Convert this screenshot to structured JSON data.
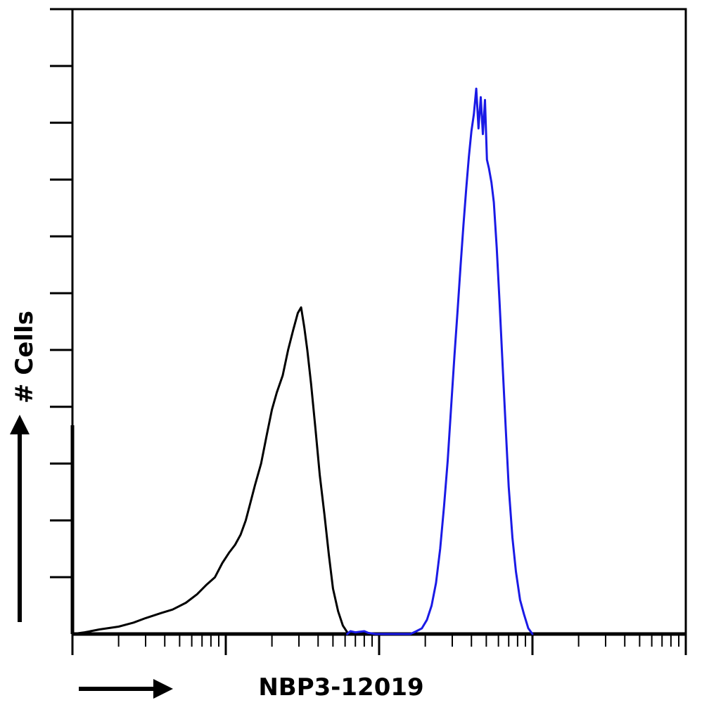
{
  "chart_data": {
    "type": "line",
    "title": "",
    "xlabel": "NBP3-12019",
    "ylabel": "# Cells",
    "x_scale": "log",
    "xlim": [
      1,
      10000
    ],
    "ylim": [
      0,
      110
    ],
    "grid": false,
    "legend": "none",
    "series": [
      {
        "color": "#000000",
        "points": [
          [
            1.0,
            0
          ],
          [
            1.2,
            0.3
          ],
          [
            1.5,
            0.8
          ],
          [
            2.0,
            1.3
          ],
          [
            2.5,
            2.0
          ],
          [
            3.0,
            2.8
          ],
          [
            3.8,
            3.7
          ],
          [
            4.5,
            4.3
          ],
          [
            5.5,
            5.5
          ],
          [
            6.5,
            7.0
          ],
          [
            7.5,
            8.7
          ],
          [
            8.5,
            10.0
          ],
          [
            9.5,
            12.5
          ],
          [
            10.5,
            14.3
          ],
          [
            11.5,
            15.7
          ],
          [
            12.5,
            17.5
          ],
          [
            13.5,
            20.0
          ],
          [
            14.5,
            23.2
          ],
          [
            15.5,
            26.2
          ],
          [
            17.0,
            30.0
          ],
          [
            18.5,
            35.0
          ],
          [
            20.0,
            39.5
          ],
          [
            21.5,
            42.5
          ],
          [
            23.5,
            45.5
          ],
          [
            25.5,
            50.0
          ],
          [
            27.5,
            53.5
          ],
          [
            29.5,
            56.5
          ],
          [
            31.0,
            57.5
          ],
          [
            32.5,
            54.0
          ],
          [
            34.0,
            50.0
          ],
          [
            36.0,
            44.0
          ],
          [
            38.5,
            36.0
          ],
          [
            41.0,
            28.0
          ],
          [
            44.0,
            21.0
          ],
          [
            47.0,
            14.0
          ],
          [
            50.0,
            8.0
          ],
          [
            54.0,
            4.0
          ],
          [
            58.0,
            1.5
          ],
          [
            62.0,
            0.3
          ],
          [
            68.0,
            0
          ]
        ]
      },
      {
        "color": "#1a1ae6",
        "points": [
          [
            62.0,
            0
          ],
          [
            65.0,
            0.5
          ],
          [
            70.0,
            0.3
          ],
          [
            75.0,
            0.4
          ],
          [
            80.0,
            0.5
          ],
          [
            85.0,
            0.2
          ],
          [
            95.0,
            0
          ],
          [
            160.0,
            0
          ],
          [
            175.0,
            0.5
          ],
          [
            190.0,
            1.0
          ],
          [
            205.0,
            2.5
          ],
          [
            220.0,
            5.0
          ],
          [
            235.0,
            9.0
          ],
          [
            250.0,
            15.0
          ],
          [
            265.0,
            22.5
          ],
          [
            280.0,
            30.5
          ],
          [
            295.0,
            40.0
          ],
          [
            310.0,
            49.0
          ],
          [
            325.0,
            57.0
          ],
          [
            340.0,
            65.0
          ],
          [
            355.0,
            72.0
          ],
          [
            370.0,
            78.5
          ],
          [
            385.0,
            84.0
          ],
          [
            400.0,
            88.5
          ],
          [
            415.0,
            91.5
          ],
          [
            430.0,
            96.0
          ],
          [
            445.0,
            89.0
          ],
          [
            460.0,
            94.5
          ],
          [
            475.0,
            88.0
          ],
          [
            490.0,
            94.0
          ],
          [
            505.0,
            83.5
          ],
          [
            520.0,
            82.0
          ],
          [
            540.0,
            79.5
          ],
          [
            560.0,
            76.0
          ],
          [
            585.0,
            68.0
          ],
          [
            610.0,
            58.5
          ],
          [
            640.0,
            47.0
          ],
          [
            670.0,
            36.0
          ],
          [
            700.0,
            26.0
          ],
          [
            740.0,
            17.0
          ],
          [
            780.0,
            11.0
          ],
          [
            830.0,
            6.0
          ],
          [
            880.0,
            3.5
          ],
          [
            940.0,
            1.0
          ],
          [
            1000.0,
            0
          ]
        ]
      }
    ]
  }
}
